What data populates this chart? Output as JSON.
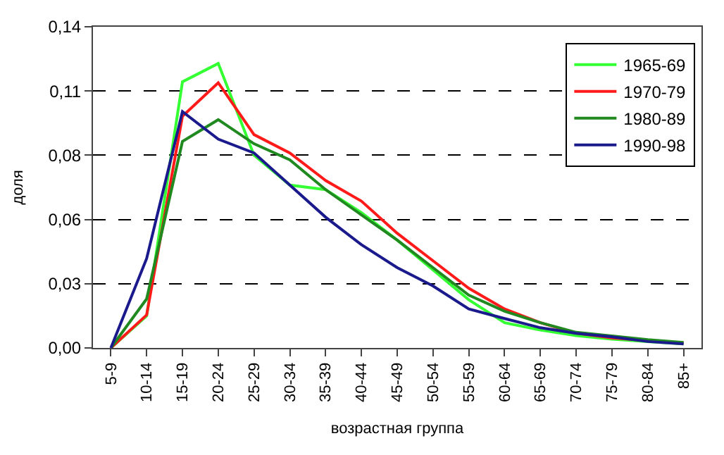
{
  "chart_data": {
    "type": "line",
    "xlabel": "возрастная группа",
    "ylabel": "доля",
    "categories": [
      "5-9",
      "10-14",
      "15-19",
      "20-24",
      "25-29",
      "30-34",
      "35-39",
      "40-44",
      "45-49",
      "50-54",
      "55-59",
      "60-64",
      "65-69",
      "70-74",
      "75-79",
      "80-84",
      "85+"
    ],
    "series": [
      {
        "name": "1965-69",
        "color": "#33ff33",
        "values": [
          0,
          0.014,
          0.116,
          0.124,
          0.084,
          0.071,
          0.069,
          0.059,
          0.047,
          0.034,
          0.021,
          0.011,
          0.0078,
          0.0054,
          0.0038,
          0.0028,
          0.0018
        ]
      },
      {
        "name": "1970-79",
        "color": "#ff1a1a",
        "values": [
          0,
          0.0144,
          0.101,
          0.1156,
          0.093,
          0.085,
          0.073,
          0.064,
          0.05,
          0.038,
          0.026,
          0.017,
          0.011,
          0.0064,
          0.0044,
          0.0032,
          0.0022
        ]
      },
      {
        "name": "1980-89",
        "color": "#208a20",
        "values": [
          0,
          0.0214,
          0.09,
          0.0995,
          0.089,
          0.082,
          0.069,
          0.058,
          0.047,
          0.035,
          0.023,
          0.016,
          0.011,
          0.0068,
          0.0052,
          0.0036,
          0.0024
        ]
      },
      {
        "name": "1990-98",
        "color": "#1a1a8c",
        "values": [
          0,
          0.039,
          0.103,
          0.091,
          0.085,
          0.071,
          0.057,
          0.045,
          0.035,
          0.027,
          0.017,
          0.0128,
          0.0088,
          0.0064,
          0.0048,
          0.0028,
          0.0018
        ]
      }
    ],
    "ylim": [
      0,
      0.14
    ],
    "yticks": [
      {
        "value": 0,
        "label": "0,00"
      },
      {
        "value": 0.028,
        "label": "0,03"
      },
      {
        "value": 0.056,
        "label": "0,06"
      },
      {
        "value": 0.084,
        "label": "0,08"
      },
      {
        "value": 0.112,
        "label": "0,11"
      },
      {
        "value": 0.14,
        "label": "0,14"
      }
    ],
    "grid": "y",
    "legend": "top right",
    "marker": "none",
    "line_style": "solid"
  }
}
